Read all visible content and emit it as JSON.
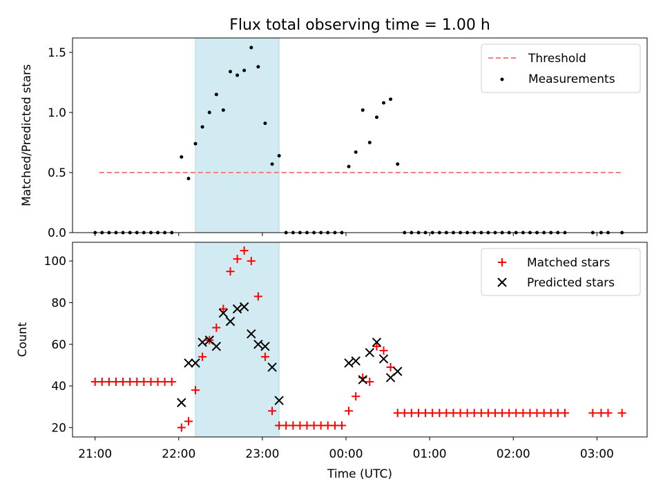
{
  "chart_data": [
    {
      "type": "scatter",
      "title": "Flux total observing time = 1.00 h",
      "xlabel": "",
      "ylabel": "Matched/Predicted stars",
      "x_unit": "hours after 21:00 UTC",
      "xlim": [
        -0.27,
        6.6
      ],
      "ylim": [
        0,
        1.62
      ],
      "yticks": [
        0.0,
        0.5,
        1.0,
        1.5
      ],
      "ytick_labels": [
        "0.0",
        "0.5",
        "1.0",
        "1.5"
      ],
      "shaded_interval": {
        "from": 1.2,
        "to": 2.2,
        "color": "#add8e6"
      },
      "legend_position": "top-right",
      "series": [
        {
          "name": "Threshold",
          "style": "dashed-line",
          "color": "#f08080",
          "x": [
            0.05,
            6.3
          ],
          "y": [
            0.5,
            0.5
          ]
        },
        {
          "name": "Measurements",
          "style": "point",
          "color": "#000000",
          "x": [
            0.0,
            0.083,
            0.167,
            0.25,
            0.333,
            0.417,
            0.5,
            0.583,
            0.667,
            0.75,
            0.833,
            0.917,
            1.033,
            1.117,
            1.2,
            1.283,
            1.367,
            1.45,
            1.533,
            1.617,
            1.7,
            1.783,
            1.867,
            1.95,
            2.033,
            2.117,
            2.2,
            2.283,
            2.367,
            2.45,
            2.533,
            2.617,
            2.7,
            2.783,
            2.867,
            2.95,
            3.033,
            3.117,
            3.2,
            3.283,
            3.367,
            3.45,
            3.533,
            3.617,
            3.7,
            3.783,
            3.867,
            3.95,
            4.033,
            4.117,
            4.2,
            4.283,
            4.367,
            4.45,
            4.533,
            4.617,
            4.7,
            4.783,
            4.867,
            4.95,
            5.033,
            5.117,
            5.2,
            5.283,
            5.367,
            5.45,
            5.533,
            5.617,
            5.95,
            6.05,
            6.133,
            6.3
          ],
          "y": [
            0,
            0,
            0,
            0,
            0,
            0,
            0,
            0,
            0,
            0,
            0,
            0,
            0.63,
            0.45,
            0.74,
            0.88,
            1.0,
            1.15,
            1.02,
            1.34,
            1.31,
            1.35,
            1.54,
            1.38,
            0.91,
            0.57,
            0.64,
            0,
            0,
            0,
            0,
            0,
            0,
            0,
            0,
            0,
            0.55,
            0.67,
            1.02,
            0.75,
            0.96,
            1.08,
            1.11,
            0.57,
            0,
            0,
            0,
            0,
            0,
            0,
            0,
            0,
            0,
            0,
            0,
            0,
            0,
            0,
            0,
            0,
            0,
            0,
            0,
            0,
            0,
            0,
            0,
            0,
            0,
            0,
            0,
            0
          ]
        }
      ]
    },
    {
      "type": "scatter",
      "title": "",
      "xlabel": "Time (UTC)",
      "ylabel": "Count",
      "x_unit": "hours after 21:00 UTC",
      "xlim": [
        -0.27,
        6.6
      ],
      "ylim": [
        15.5,
        109
      ],
      "yticks": [
        20,
        40,
        60,
        80,
        100
      ],
      "xticks": [
        0,
        1,
        2,
        3,
        4,
        5,
        6
      ],
      "xtick_labels": [
        "21:00",
        "22:00",
        "23:00",
        "00:00",
        "01:00",
        "02:00",
        "03:00"
      ],
      "shaded_interval": {
        "from": 1.2,
        "to": 2.2,
        "color": "#add8e6"
      },
      "legend_position": "top-right",
      "series": [
        {
          "name": "Matched stars",
          "marker": "plus",
          "color": "#ff0000",
          "x": [
            0.0,
            0.083,
            0.167,
            0.25,
            0.333,
            0.417,
            0.5,
            0.583,
            0.667,
            0.75,
            0.833,
            0.917,
            1.033,
            1.117,
            1.2,
            1.283,
            1.367,
            1.45,
            1.533,
            1.617,
            1.7,
            1.783,
            1.867,
            1.95,
            2.033,
            2.117,
            2.2,
            2.283,
            2.367,
            2.45,
            2.533,
            2.617,
            2.7,
            2.783,
            2.867,
            2.95,
            3.033,
            3.117,
            3.2,
            3.283,
            3.367,
            3.45,
            3.533,
            3.617,
            3.7,
            3.783,
            3.867,
            3.95,
            4.033,
            4.117,
            4.2,
            4.283,
            4.367,
            4.45,
            4.533,
            4.617,
            4.7,
            4.783,
            4.867,
            4.95,
            5.033,
            5.117,
            5.2,
            5.283,
            5.367,
            5.45,
            5.533,
            5.617,
            5.95,
            6.05,
            6.133,
            6.3
          ],
          "y": [
            42,
            42,
            42,
            42,
            42,
            42,
            42,
            42,
            42,
            42,
            42,
            42,
            20,
            23,
            38,
            54,
            62,
            68,
            77,
            95,
            101,
            105,
            100,
            83,
            54,
            28,
            21,
            21,
            21,
            21,
            21,
            21,
            21,
            21,
            21,
            21,
            28,
            35,
            44,
            42,
            59,
            57,
            49,
            27,
            27,
            27,
            27,
            27,
            27,
            27,
            27,
            27,
            27,
            27,
            27,
            27,
            27,
            27,
            27,
            27,
            27,
            27,
            27,
            27,
            27,
            27,
            27,
            27,
            27,
            27,
            27,
            27
          ]
        },
        {
          "name": "Predicted stars",
          "marker": "cross",
          "color": "#000000",
          "x": [
            1.033,
            1.117,
            1.2,
            1.283,
            1.367,
            1.45,
            1.533,
            1.617,
            1.7,
            1.783,
            1.867,
            1.95,
            2.033,
            2.117,
            2.2,
            3.033,
            3.117,
            3.2,
            3.283,
            3.367,
            3.45,
            3.533,
            3.617
          ],
          "y": [
            32,
            51,
            51,
            61,
            62,
            59,
            75,
            71,
            77,
            78,
            65,
            60,
            59,
            49,
            33,
            51,
            52,
            43,
            56,
            61,
            53,
            44,
            47
          ]
        }
      ]
    }
  ]
}
